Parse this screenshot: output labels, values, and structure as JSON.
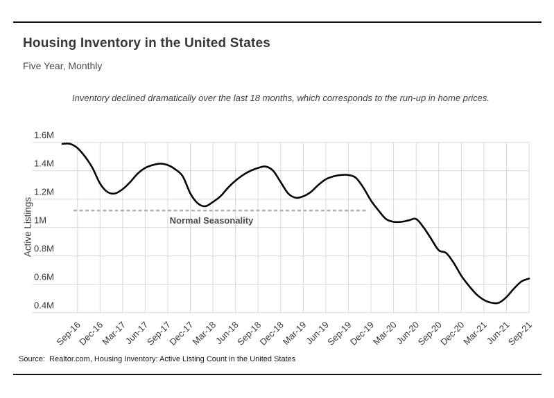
{
  "header": {
    "title": "Housing Inventory in the United States",
    "subtitle": "Five Year, Monthly"
  },
  "annotation": "Inventory declined dramatically over the last 18 months, which corresponds to the run-up in home prices.",
  "source": "Source:  Realtor.com, Housing Inventory: Active Listing Count in the United States",
  "colors": {
    "line": "#050505",
    "grid": "#d9d9d9",
    "reference_line": "#b0b0b0",
    "rule": "#111111"
  },
  "chart_data": {
    "type": "line",
    "title": "Housing Inventory in the United States",
    "subtitle": "Five Year, Monthly",
    "xlabel": "",
    "ylabel": "Active Listings",
    "units": "millions of listings",
    "ylim": [
      0.4,
      1.6
    ],
    "grid": true,
    "y_ticks": [
      {
        "label": "1.6M",
        "value": 1.6
      },
      {
        "label": "1.4M",
        "value": 1.4
      },
      {
        "label": "1.2M",
        "value": 1.2
      },
      {
        "label": "1M",
        "value": 1.0
      },
      {
        "label": "0.8M",
        "value": 0.8
      },
      {
        "label": "0.6M",
        "value": 0.6
      },
      {
        "label": "0.4M",
        "value": 0.4
      }
    ],
    "x_tick_labels": [
      "Sep-16",
      "Dec-16",
      "Mar-17",
      "Jun-17",
      "Sep-17",
      "Dec-17",
      "Mar-18",
      "Jun-18",
      "Sep-18",
      "Dec-18",
      "Mar-19",
      "Jun-19",
      "Sep-19",
      "Dec-19",
      "Mar-20",
      "Jun-20",
      "Sep-20",
      "Dec-20",
      "Mar-21",
      "Jun-21",
      "Sep-21"
    ],
    "x": [
      "Jul-16",
      "Aug-16",
      "Sep-16",
      "Oct-16",
      "Nov-16",
      "Dec-16",
      "Jan-17",
      "Feb-17",
      "Mar-17",
      "Apr-17",
      "May-17",
      "Jun-17",
      "Jul-17",
      "Aug-17",
      "Sep-17",
      "Oct-17",
      "Nov-17",
      "Dec-17",
      "Jan-18",
      "Feb-18",
      "Mar-18",
      "Apr-18",
      "May-18",
      "Jun-18",
      "Jul-18",
      "Aug-18",
      "Sep-18",
      "Oct-18",
      "Nov-18",
      "Dec-18",
      "Jan-19",
      "Feb-19",
      "Mar-19",
      "Apr-19",
      "May-19",
      "Jun-19",
      "Jul-19",
      "Aug-19",
      "Sep-19",
      "Oct-19",
      "Nov-19",
      "Dec-19",
      "Jan-20",
      "Feb-20",
      "Mar-20",
      "Apr-20",
      "May-20",
      "Jun-20",
      "Jul-20",
      "Aug-20",
      "Sep-20",
      "Oct-20",
      "Nov-20",
      "Dec-20",
      "Jan-21",
      "Feb-21",
      "Mar-21",
      "Apr-21",
      "May-21",
      "Jun-21",
      "Jul-21",
      "Aug-21",
      "Sep-21"
    ],
    "series": [
      {
        "name": "Active Listing Count (millions)",
        "values": [
          1.59,
          1.59,
          1.56,
          1.5,
          1.42,
          1.31,
          1.25,
          1.24,
          1.27,
          1.32,
          1.38,
          1.42,
          1.44,
          1.45,
          1.44,
          1.41,
          1.36,
          1.24,
          1.17,
          1.15,
          1.18,
          1.22,
          1.28,
          1.33,
          1.37,
          1.4,
          1.42,
          1.43,
          1.4,
          1.32,
          1.24,
          1.21,
          1.22,
          1.25,
          1.3,
          1.34,
          1.36,
          1.37,
          1.37,
          1.35,
          1.28,
          1.19,
          1.12,
          1.06,
          1.04,
          1.04,
          1.05,
          1.06,
          1.0,
          0.92,
          0.84,
          0.82,
          0.75,
          0.66,
          0.59,
          0.53,
          0.49,
          0.47,
          0.47,
          0.51,
          0.57,
          0.62,
          0.64
        ]
      }
    ],
    "reference_line": {
      "label": "Normal Seasonality",
      "value": 1.12,
      "style": "dashed",
      "span": "Jul-16 through Nov-19"
    },
    "legend_position": "none"
  }
}
